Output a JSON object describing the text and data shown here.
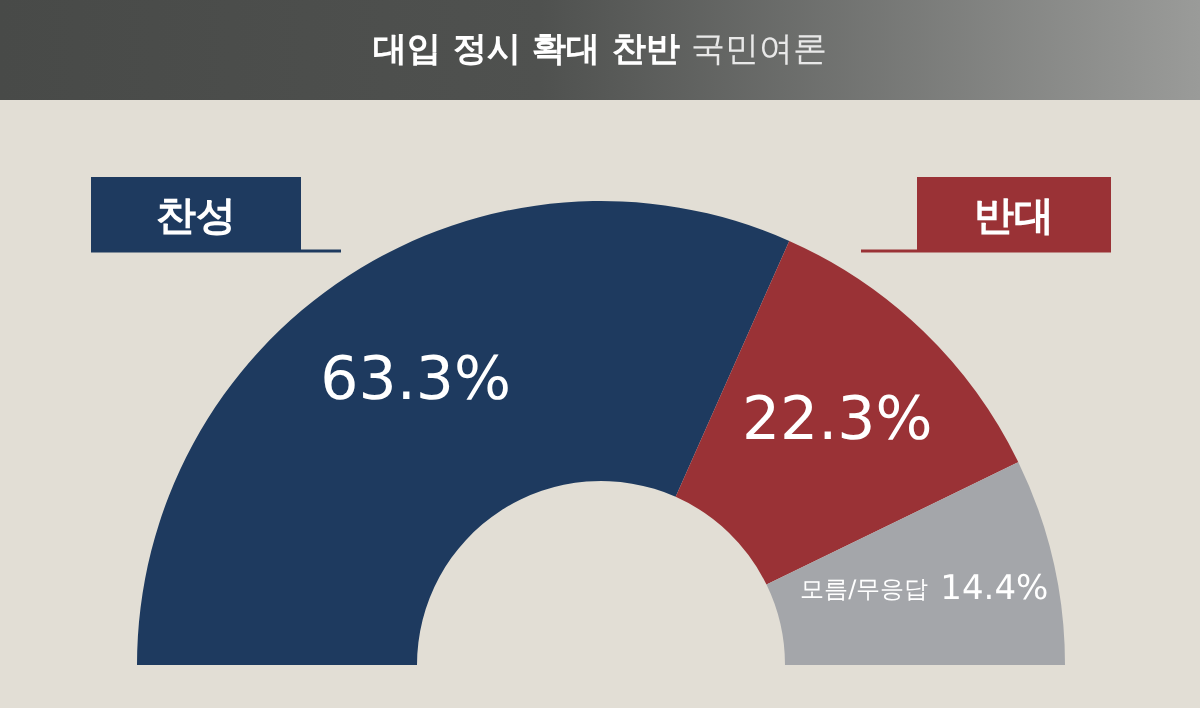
{
  "chart_data": {
    "type": "donut",
    "title": "대입 정시 확대 찬반",
    "subtitle": "국민여론",
    "categories": [
      "찬성",
      "반대",
      "모름/무응답"
    ],
    "values": [
      63.3,
      22.3,
      14.4
    ],
    "colors": [
      "#1e3a5f",
      "#9a3236",
      "#a4a6aa"
    ],
    "value_labels": [
      "63.3%",
      "22.3%",
      "14.4%"
    ]
  }
}
